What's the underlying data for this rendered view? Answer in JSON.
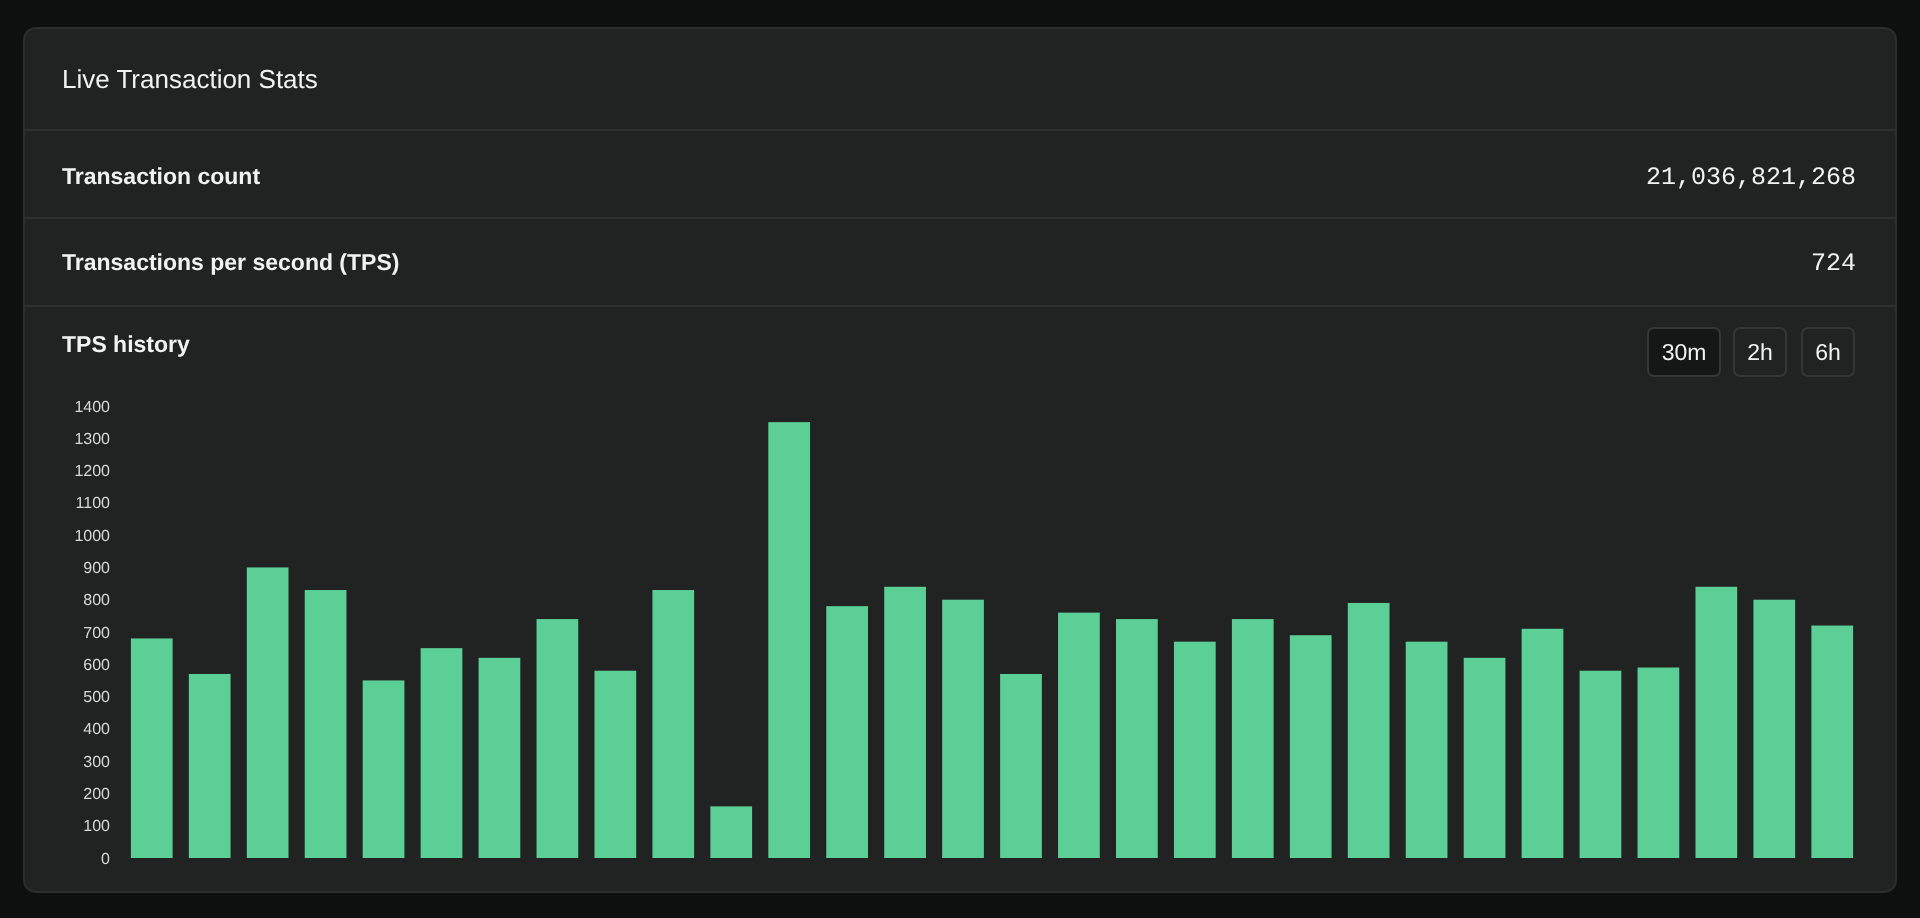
{
  "chart_data": {
    "type": "bar",
    "title": "Live Transaction Stats",
    "subtitle": "TPS history",
    "annotations": [
      "Transaction count",
      "21,036,821,268",
      "Transactions per second (TPS)",
      "724",
      "30m",
      "2h",
      "6h"
    ],
    "categories": [
      null,
      null,
      null,
      null,
      null,
      null,
      null,
      null,
      null,
      null,
      null,
      null,
      null,
      null,
      null,
      null,
      null,
      null,
      null,
      null,
      null,
      null,
      null,
      null,
      null,
      null,
      null,
      null,
      null,
      null
    ],
    "values": [
      680,
      570,
      900,
      830,
      550,
      650,
      620,
      740,
      580,
      830,
      160,
      1350,
      780,
      840,
      800,
      570,
      760,
      740,
      670,
      740,
      690,
      790,
      670,
      620,
      710,
      580,
      590,
      840,
      800,
      720
    ],
    "color": "#5ccf96",
    "ylim": [
      0,
      1400
    ],
    "yticks": [
      0,
      100,
      200,
      300,
      400,
      500,
      600,
      700,
      800,
      900,
      1000,
      1100,
      1200,
      1300,
      1400
    ],
    "grid": false,
    "tick_labels": "y"
  }
}
